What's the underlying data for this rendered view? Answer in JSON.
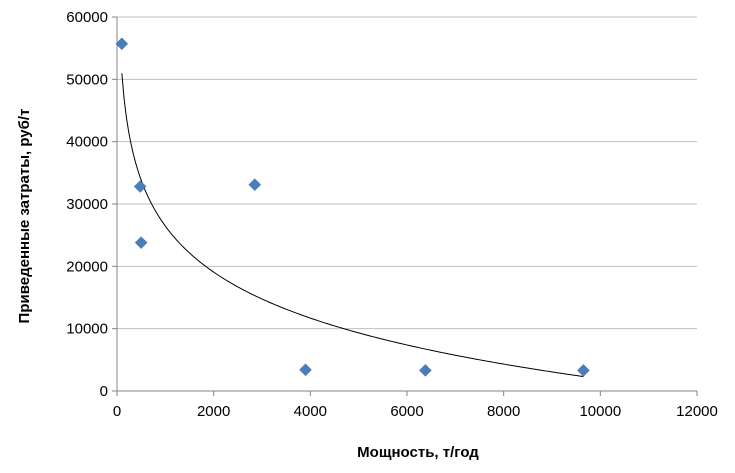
{
  "chart_data": {
    "type": "scatter",
    "xlabel": "Мощность, т/год",
    "ylabel": "Приведенные затраты, руб/т",
    "xlim": [
      0,
      12000
    ],
    "ylim": [
      0,
      60000
    ],
    "x_ticks": [
      "0",
      "2000",
      "4000",
      "6000",
      "8000",
      "10000",
      "12000"
    ],
    "y_ticks": [
      "0",
      "10000",
      "20000",
      "30000",
      "40000",
      "50000",
      "60000"
    ],
    "grid": "horizontal",
    "marker": "diamond",
    "marker_color": "#4A7EBB",
    "trendline": "logarithmic",
    "trendline_color": "#000000",
    "points": [
      {
        "x": 100,
        "y": 55700
      },
      {
        "x": 480,
        "y": 32800
      },
      {
        "x": 500,
        "y": 23800
      },
      {
        "x": 2850,
        "y": 33100
      },
      {
        "x": 3900,
        "y": 3400
      },
      {
        "x": 6380,
        "y": 3300
      },
      {
        "x": 9650,
        "y": 3300
      }
    ]
  }
}
